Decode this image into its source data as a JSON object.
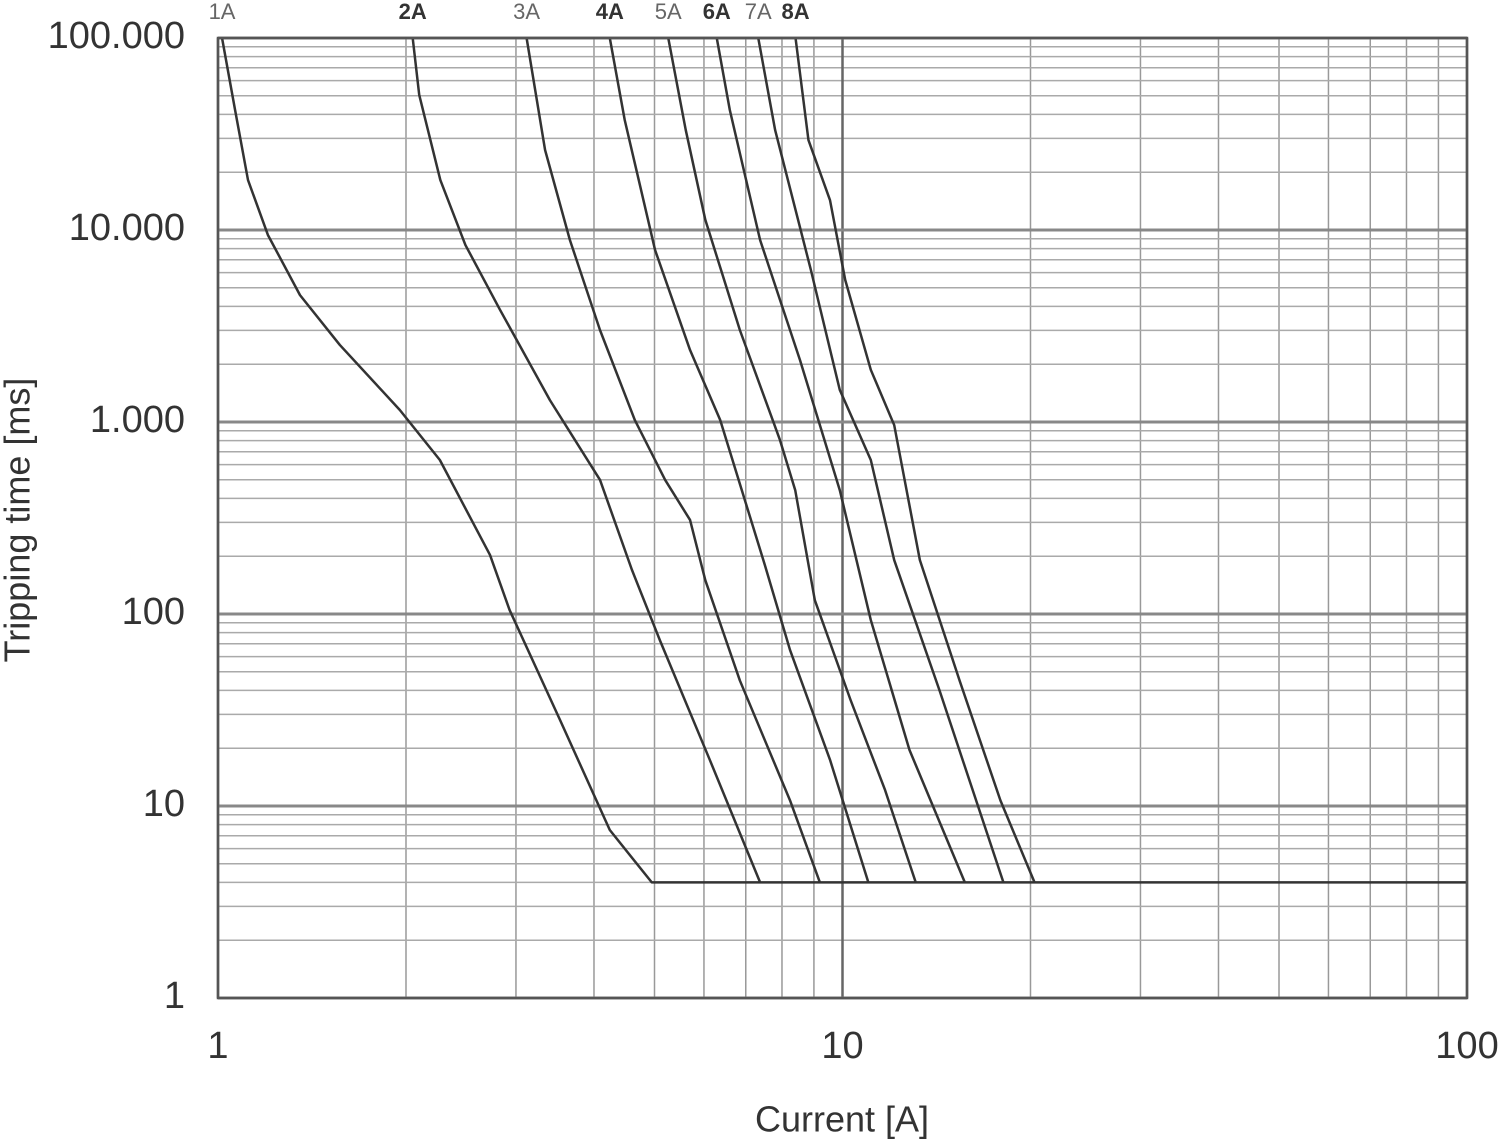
{
  "chart_data": {
    "type": "line",
    "x_label": "Current [A]",
    "y_label": "Tripping time [ms]",
    "log_x": true,
    "log_y": true,
    "grid": true,
    "xlim": [
      1,
      100
    ],
    "ylim": [
      1,
      100000
    ],
    "xticks": [
      1,
      10,
      100
    ],
    "yticks": [
      1,
      10,
      100,
      {
        "value": 1000,
        "label": "1.000"
      },
      {
        "value": 10000,
        "label": "10.000"
      },
      {
        "value": 100000,
        "label": "100.000"
      }
    ],
    "xminor_ticks": [
      2,
      3,
      4,
      5,
      6,
      7,
      8,
      9,
      20,
      30,
      40,
      50,
      60,
      70,
      80,
      90
    ],
    "yminor_ticks": [
      2,
      3,
      4,
      5,
      6,
      7,
      8,
      9,
      20,
      30,
      40,
      50,
      60,
      70,
      80,
      90,
      200,
      300,
      400,
      500,
      600,
      700,
      800,
      900,
      2000,
      3000,
      4000,
      5000,
      6000,
      7000,
      8000,
      9000,
      20000,
      30000,
      40000,
      50000,
      60000,
      70000,
      80000,
      90000
    ],
    "series": [
      {
        "name": "1A",
        "color": "#333333",
        "bold": false,
        "x": [
          1.015,
          1.065,
          1.117,
          1.202,
          1.353,
          1.567,
          1.955,
          2.266,
          2.726,
          2.93,
          3.53,
          4.24,
          4.95,
          100
        ],
        "values": [
          100000,
          42170,
          18200,
          9420,
          4580,
          2520,
          1155,
          634,
          203,
          105,
          28,
          7.5,
          4,
          4
        ]
      },
      {
        "name": "2A",
        "color": "#333333",
        "bold": true,
        "x": [
          2.05,
          2.1,
          2.27,
          2.49,
          2.83,
          3.4,
          4.09,
          4.6,
          5.1,
          6.13,
          7.38
        ],
        "values": [
          100000,
          50500,
          18200,
          8350,
          3830,
          1300,
          499,
          170,
          73,
          17.4,
          4
        ]
      },
      {
        "name": "3A",
        "color": "#333333",
        "bold": false,
        "x": [
          3.12,
          3.34,
          3.66,
          4.09,
          4.65,
          5.2,
          5.7,
          6.03,
          6.85,
          8.24,
          9.2
        ],
        "values": [
          100000,
          26100,
          8870,
          3010,
          1024,
          499,
          309,
          150,
          45,
          10.7,
          4
        ]
      },
      {
        "name": "4A",
        "color": "#333333",
        "bold": true,
        "x": [
          4.24,
          4.48,
          5.01,
          5.7,
          6.37,
          7.51,
          8.24,
          9.55,
          11.0
        ],
        "values": [
          100000,
          37400,
          7870,
          2370,
          1024,
          180,
          65,
          17.4,
          4
        ]
      },
      {
        "name": "5A",
        "color": "#333333",
        "bold": false,
        "x": [
          5.26,
          5.61,
          6.03,
          6.85,
          7.94,
          8.4,
          9.03,
          10.3,
          11.7,
          13.1
        ],
        "values": [
          100000,
          33200,
          11300,
          3010,
          806,
          442,
          118,
          35.7,
          12.1,
          4
        ]
      },
      {
        "name": "6A",
        "color": "#333333",
        "bold": true,
        "x": [
          6.29,
          6.6,
          7.38,
          8.55,
          9.9,
          11.1,
          12.8,
          15.7
        ],
        "values": [
          100000,
          42170,
          8870,
          2100,
          442,
          93,
          19.6,
          4
        ]
      },
      {
        "name": "7A",
        "color": "#333333",
        "bold": false,
        "x": [
          7.33,
          7.8,
          8.9,
          9.9,
          11.1,
          12.1,
          14.3,
          18.1
        ],
        "values": [
          100000,
          33200,
          6190,
          1470,
          634,
          191,
          40,
          4
        ]
      },
      {
        "name": "8A",
        "color": "#333333",
        "bold": true,
        "x": [
          8.41,
          8.82,
          9.55,
          10.1,
          11.1,
          12.1,
          13.3,
          15.4,
          17.9,
          20.3
        ],
        "values": [
          100000,
          29400,
          14300,
          5500,
          1870,
          964,
          191,
          45,
          10.7,
          4
        ]
      }
    ]
  }
}
